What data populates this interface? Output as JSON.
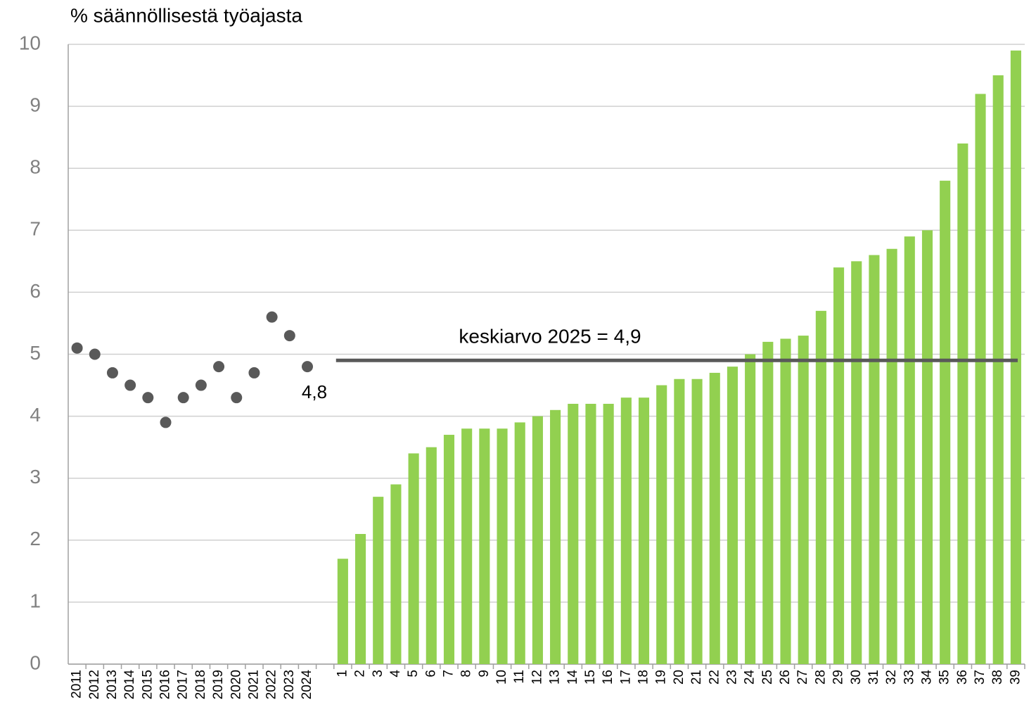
{
  "chart_data": {
    "type": "bar",
    "title": "% säännöllisestä työajasta",
    "categories": [
      "2011",
      "2012",
      "2013",
      "2014",
      "2015",
      "2016",
      "2017",
      "2018",
      "2019",
      "2020",
      "2021",
      "2022",
      "2023",
      "2024",
      null,
      "1",
      "2",
      "3",
      "4",
      "5",
      "6",
      "7",
      "8",
      "9",
      "10",
      "11",
      "12",
      "13",
      "14",
      "15",
      "16",
      "17",
      "18",
      "19",
      "20",
      "21",
      "22",
      "23",
      "24",
      "25",
      "26",
      "27",
      "28",
      "29",
      "30",
      "31",
      "32",
      "33",
      "34",
      "35",
      "36",
      "37",
      "38",
      "39"
    ],
    "series": [
      {
        "type": "scatter",
        "color": "#595959",
        "values": [
          5.1,
          5.0,
          4.7,
          4.5,
          4.3,
          3.9,
          4.3,
          4.5,
          4.8,
          4.3,
          4.7,
          5.6,
          5.3,
          4.8,
          null,
          null,
          null,
          null,
          null,
          null,
          null,
          null,
          null,
          null,
          null,
          null,
          null,
          null,
          null,
          null,
          null,
          null,
          null,
          null,
          null,
          null,
          null,
          null,
          null,
          null,
          null,
          null,
          null,
          null,
          null,
          null,
          null,
          null,
          null,
          null,
          null,
          null,
          null,
          null
        ],
        "value_labels": [
          null,
          null,
          null,
          null,
          null,
          null,
          null,
          null,
          null,
          null,
          null,
          null,
          null,
          "4,8",
          null,
          null,
          null,
          null,
          null,
          null,
          null,
          null,
          null,
          null,
          null,
          null,
          null,
          null,
          null,
          null,
          null,
          null,
          null,
          null,
          null,
          null,
          null,
          null,
          null,
          null,
          null,
          null,
          null,
          null,
          null,
          null,
          null,
          null,
          null,
          null,
          null,
          null,
          null,
          null
        ]
      },
      {
        "type": "bar",
        "color": "#92d050",
        "values": [
          null,
          null,
          null,
          null,
          null,
          null,
          null,
          null,
          null,
          null,
          null,
          null,
          null,
          null,
          null,
          1.7,
          2.1,
          2.7,
          2.9,
          3.4,
          3.5,
          3.7,
          3.8,
          3.8,
          3.8,
          3.9,
          4.0,
          4.1,
          4.2,
          4.2,
          4.2,
          4.3,
          4.3,
          4.5,
          4.6,
          4.6,
          4.7,
          4.8,
          5.0,
          5.2,
          5.25,
          5.3,
          5.7,
          6.4,
          6.5,
          6.6,
          6.7,
          6.9,
          7.0,
          7.8,
          8.4,
          9.2,
          9.5,
          9.9
        ]
      }
    ],
    "annotation": {
      "text": "keskiarvo 2025 = 4,9",
      "value": 4.9,
      "color": "#595959"
    },
    "ylim": [
      0,
      10
    ],
    "yticks": [
      0,
      1,
      2,
      3,
      4,
      5,
      6,
      7,
      8,
      9,
      10
    ],
    "grid": true
  }
}
